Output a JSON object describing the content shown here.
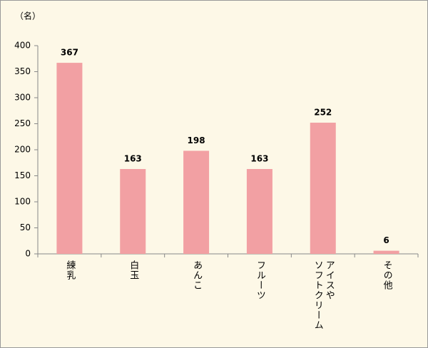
{
  "chart_data": {
    "type": "bar",
    "unit_label": "（名）",
    "categories": [
      "練乳",
      "白玉",
      "あんこ",
      "フルーツ",
      "アイスや\nソフトクリーム",
      "その他"
    ],
    "values": [
      367,
      163,
      198,
      163,
      252,
      6
    ],
    "color": "#f2a0a3",
    "ylim": [
      0,
      400
    ],
    "yticks": [
      0,
      50,
      100,
      150,
      200,
      250,
      300,
      350,
      400
    ],
    "grid": false
  }
}
